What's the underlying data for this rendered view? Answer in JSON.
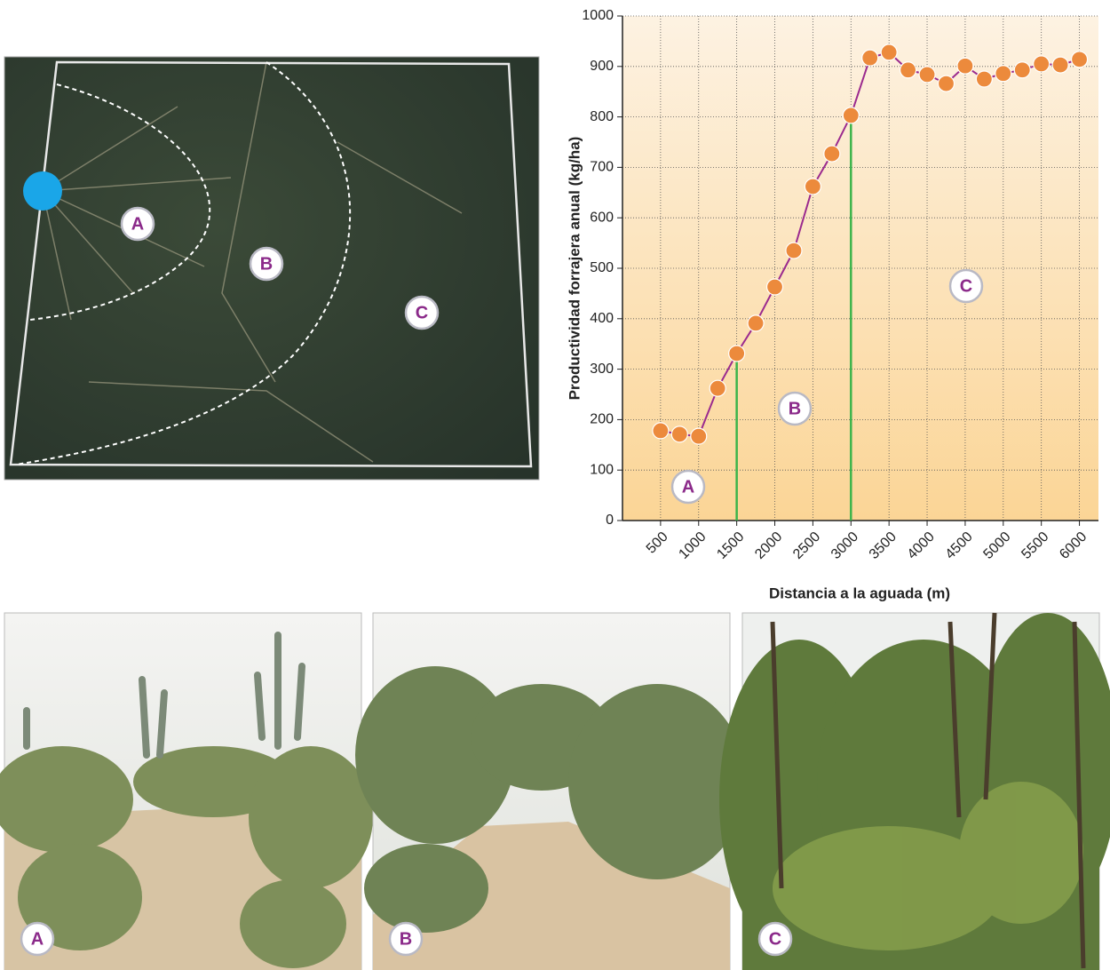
{
  "chart_data": {
    "type": "line",
    "x": [
      500,
      750,
      1000,
      1250,
      1500,
      1750,
      2000,
      2250,
      2500,
      2750,
      3000,
      3250,
      3500,
      3750,
      4000,
      4250,
      4500,
      4750,
      5000,
      5250,
      5500,
      5750,
      6000
    ],
    "values": [
      178,
      171,
      167,
      262,
      331,
      391,
      463,
      535,
      662,
      727,
      803,
      917,
      928,
      893,
      884,
      866,
      901,
      875,
      886,
      893,
      905,
      903,
      914
    ],
    "color": "#9b2a8e",
    "marker_color": "#ec8a3c",
    "xlim": [
      0,
      6250
    ],
    "xticks": [
      500,
      1000,
      1500,
      2000,
      2500,
      3000,
      3500,
      4000,
      4500,
      5000,
      5500,
      6000
    ],
    "ylim": [
      0,
      1000
    ],
    "yticks": [
      0,
      100,
      200,
      300,
      400,
      500,
      600,
      700,
      800,
      900,
      1000
    ],
    "grid": true,
    "xlabel": "Distancia a la aguada (m)",
    "ylabel": "Productividad forrajera anual (kg/ha)",
    "vlines": [
      1500,
      3000
    ],
    "vline_color": "#3cb44b",
    "annotations": [
      "A",
      "B",
      "C"
    ]
  },
  "map": {
    "labels": [
      "A",
      "B",
      "C"
    ]
  },
  "photos": {
    "labels": [
      "A",
      "B",
      "C"
    ]
  }
}
